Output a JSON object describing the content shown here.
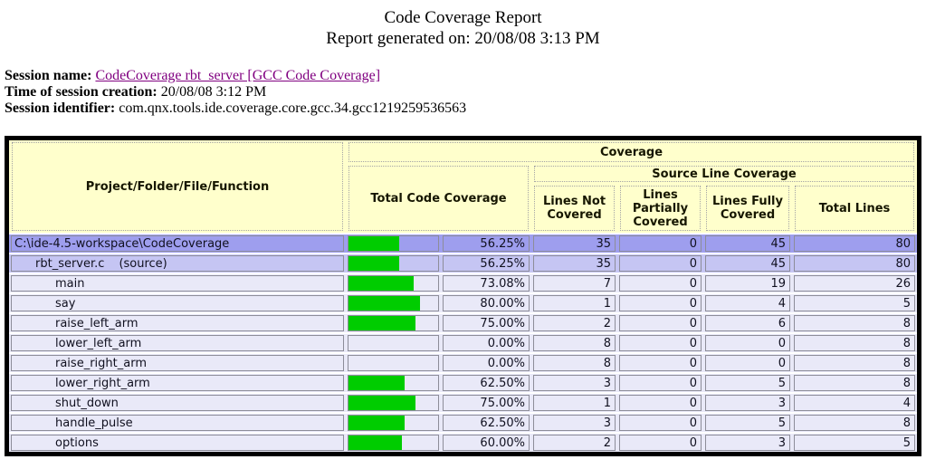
{
  "report": {
    "title": "Code Coverage Report",
    "generated_line": "Report generated on: 20/08/08 3:13 PM"
  },
  "session": {
    "name_label": "Session name:",
    "name_link_text": "CodeCoverage rbt_server [GCC Code Coverage]",
    "creation_label": "Time of session creation:",
    "creation_value": "20/08/08 3:12 PM",
    "identifier_label": "Session identifier:",
    "identifier_value": "com.qnx.tools.ide.coverage.core.gcc.34.gcc1219259536563"
  },
  "coverage_table": {
    "col_project": "Project/Folder/File/Function",
    "col_coverage_group": "Coverage",
    "col_total_code_coverage": "Total Code Coverage",
    "col_source_line_group": "Source Line Coverage",
    "col_lines_not_covered": "Lines Not Covered",
    "col_lines_partially_covered": "Lines Partially Covered",
    "col_lines_fully_covered": "Lines Fully Covered",
    "col_total_lines": "Total Lines",
    "rows": [
      {
        "label": "C:\\ide-4.5-workspace\\CodeCoverage",
        "suffix": "",
        "level": "project",
        "percent": 56.25,
        "percent_label": "56.25%",
        "lines_not_covered": 35,
        "lines_partially_covered": 0,
        "lines_fully_covered": 45,
        "total_lines": 80
      },
      {
        "label": "rbt_server.c",
        "suffix": "(source)",
        "level": "file",
        "percent": 56.25,
        "percent_label": "56.25%",
        "lines_not_covered": 35,
        "lines_partially_covered": 0,
        "lines_fully_covered": 45,
        "total_lines": 80
      },
      {
        "label": "main",
        "suffix": "",
        "level": "function",
        "percent": 73.08,
        "percent_label": "73.08%",
        "lines_not_covered": 7,
        "lines_partially_covered": 0,
        "lines_fully_covered": 19,
        "total_lines": 26
      },
      {
        "label": "say",
        "suffix": "",
        "level": "function",
        "percent": 80.0,
        "percent_label": "80.00%",
        "lines_not_covered": 1,
        "lines_partially_covered": 0,
        "lines_fully_covered": 4,
        "total_lines": 5
      },
      {
        "label": "raise_left_arm",
        "suffix": "",
        "level": "function",
        "percent": 75.0,
        "percent_label": "75.00%",
        "lines_not_covered": 2,
        "lines_partially_covered": 0,
        "lines_fully_covered": 6,
        "total_lines": 8
      },
      {
        "label": "lower_left_arm",
        "suffix": "",
        "level": "function",
        "percent": 0.0,
        "percent_label": "0.00%",
        "lines_not_covered": 8,
        "lines_partially_covered": 0,
        "lines_fully_covered": 0,
        "total_lines": 8
      },
      {
        "label": "raise_right_arm",
        "suffix": "",
        "level": "function",
        "percent": 0.0,
        "percent_label": "0.00%",
        "lines_not_covered": 8,
        "lines_partially_covered": 0,
        "lines_fully_covered": 0,
        "total_lines": 8
      },
      {
        "label": "lower_right_arm",
        "suffix": "",
        "level": "function",
        "percent": 62.5,
        "percent_label": "62.50%",
        "lines_not_covered": 3,
        "lines_partially_covered": 0,
        "lines_fully_covered": 5,
        "total_lines": 8
      },
      {
        "label": "shut_down",
        "suffix": "",
        "level": "function",
        "percent": 75.0,
        "percent_label": "75.00%",
        "lines_not_covered": 1,
        "lines_partially_covered": 0,
        "lines_fully_covered": 3,
        "total_lines": 4
      },
      {
        "label": "handle_pulse",
        "suffix": "",
        "level": "function",
        "percent": 62.5,
        "percent_label": "62.50%",
        "lines_not_covered": 3,
        "lines_partially_covered": 0,
        "lines_fully_covered": 5,
        "total_lines": 8
      },
      {
        "label": "options",
        "suffix": "",
        "level": "function",
        "percent": 60.0,
        "percent_label": "60.00%",
        "lines_not_covered": 2,
        "lines_partially_covered": 0,
        "lines_fully_covered": 3,
        "total_lines": 5
      }
    ]
  },
  "colors": {
    "header_bg": "#ffffcc",
    "project_row_bg": "#9e9eee",
    "file_row_bg": "#c5c5f3",
    "function_row_bg": "#e9e9f8",
    "bar_color": "#00cc00",
    "link_color": "#800080"
  }
}
